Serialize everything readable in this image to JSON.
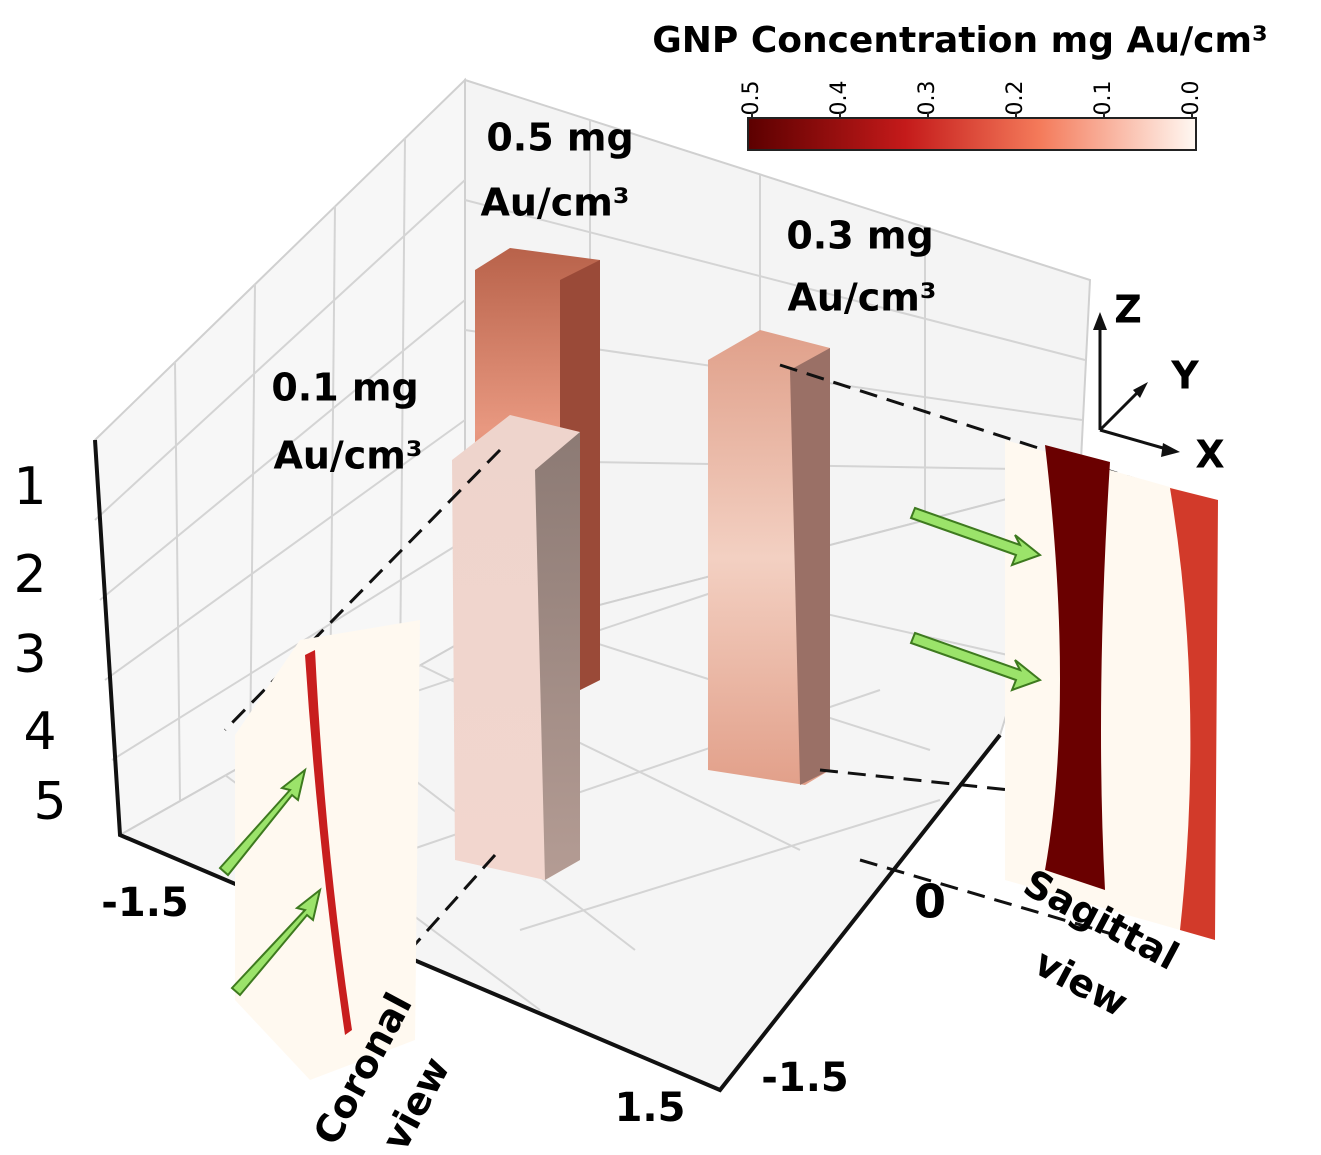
{
  "colorbar": {
    "title": "GNP Concentration mg Au/cm³",
    "ticks": [
      "0.5",
      "0.4",
      "0.3",
      "0.2",
      "0.1",
      "0.0"
    ]
  },
  "labels": [
    {
      "line1": "0.5 mg",
      "line2": "Au/cm³"
    },
    {
      "line1": "0.3 mg",
      "line2": "Au/cm³"
    },
    {
      "line1": "0.1 mg",
      "line2": "Au/cm³"
    }
  ],
  "axes": {
    "z": "Z",
    "y": "Y",
    "x": "X"
  },
  "depth_ticks": [
    "1",
    "2",
    "3",
    "4",
    "5"
  ],
  "x_ticks": [
    "-1.5",
    "1.5"
  ],
  "y_ticks": [
    "0",
    "-1.5"
  ],
  "views": {
    "sagittal": {
      "line1": "Sagittal",
      "line2": "view"
    },
    "coronal": {
      "line1": "Coronal",
      "line2": "view"
    }
  }
}
